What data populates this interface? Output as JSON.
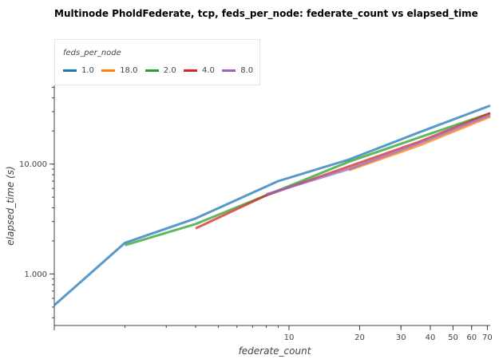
{
  "chart_data": {
    "type": "line",
    "title": "Multinode PholdFederate, tcp, feds_per_node: federate_count vs elapsed_time",
    "xlabel": "federate_count",
    "ylabel": "elapsed_time (s)",
    "x_scale": "log",
    "y_scale": "log",
    "xlim": [
      1,
      72
    ],
    "ylim": [
      0.34,
      52
    ],
    "x_ticks": [
      {
        "value": 10,
        "label": "10"
      },
      {
        "value": 20,
        "label": "20"
      },
      {
        "value": 30,
        "label": "30"
      },
      {
        "value": 40,
        "label": "40"
      },
      {
        "value": 50,
        "label": "50"
      },
      {
        "value": 60,
        "label": "60"
      },
      {
        "value": 70,
        "label": "70"
      }
    ],
    "y_ticks": [
      {
        "value": 1,
        "label": "1.000"
      },
      {
        "value": 10,
        "label": "10.000"
      }
    ],
    "legend": {
      "title": "feds_per_node",
      "placement": "top-left"
    },
    "series": [
      {
        "name": "1.0",
        "color": "#1f77b4",
        "x": [
          1,
          2,
          4,
          9,
          18,
          36,
          72
        ],
        "y": [
          0.52,
          1.92,
          3.2,
          7.0,
          11.0,
          19.5,
          34.0
        ]
      },
      {
        "name": "18.0",
        "color": "#ff7f0e",
        "x": [
          18,
          36,
          72
        ],
        "y": [
          8.8,
          14.8,
          27.0
        ]
      },
      {
        "name": "2.0",
        "color": "#2ca02c",
        "x": [
          2,
          4,
          8,
          18,
          36,
          72
        ],
        "y": [
          1.83,
          2.85,
          5.2,
          10.5,
          17.5,
          29.0
        ]
      },
      {
        "name": "4.0",
        "color": "#d62728",
        "x": [
          4,
          8,
          18,
          36,
          72
        ],
        "y": [
          2.6,
          5.2,
          9.5,
          16.0,
          29.0
        ]
      },
      {
        "name": "8.0",
        "color": "#9467bd",
        "x": [
          8,
          18,
          36,
          72
        ],
        "y": [
          5.3,
          9.0,
          15.5,
          28.0
        ]
      }
    ]
  }
}
